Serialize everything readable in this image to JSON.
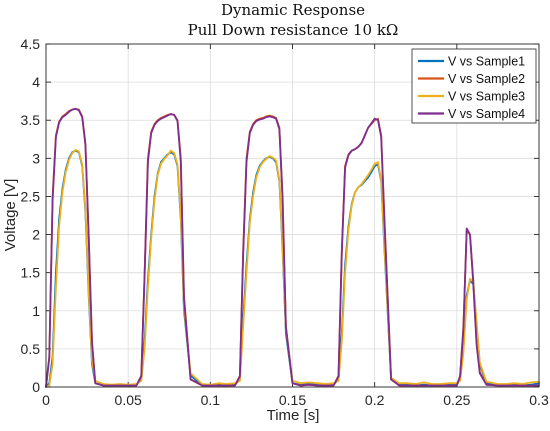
{
  "chart_data": {
    "type": "line",
    "title": "Dynamic Response",
    "subtitle": "Pull Down resistance 10 kΩ",
    "xlabel": "Time [s]",
    "ylabel": "Voltage [V]",
    "xlim": [
      0,
      0.3
    ],
    "ylim": [
      0,
      4.5
    ],
    "xticks": [
      0,
      0.05,
      0.1,
      0.15,
      0.2,
      0.25,
      0.3
    ],
    "xtick_labels": [
      "0",
      "0.05",
      "0.1",
      "0.15",
      "0.2",
      "0.25",
      "0.3"
    ],
    "yticks": [
      0,
      0.5,
      1,
      1.5,
      2,
      2.5,
      3,
      3.5,
      4,
      4.5
    ],
    "ytick_labels": [
      "0",
      "0.5",
      "1",
      "1.5",
      "2",
      "2.5",
      "3",
      "3.5",
      "4",
      "4.5"
    ],
    "grid": true,
    "legend_position": "top-right",
    "series": [
      {
        "name": "V vs Sample1",
        "color": "#0072BD",
        "x": [
          0.0,
          0.002,
          0.004,
          0.006,
          0.008,
          0.01,
          0.012,
          0.014,
          0.016,
          0.018,
          0.02,
          0.022,
          0.024,
          0.026,
          0.028,
          0.03,
          0.035,
          0.04,
          0.045,
          0.05,
          0.055,
          0.058,
          0.06,
          0.062,
          0.064,
          0.066,
          0.068,
          0.07,
          0.072,
          0.074,
          0.076,
          0.078,
          0.08,
          0.082,
          0.084,
          0.088,
          0.095,
          0.1,
          0.105,
          0.11,
          0.115,
          0.118,
          0.12,
          0.122,
          0.124,
          0.126,
          0.128,
          0.13,
          0.132,
          0.134,
          0.136,
          0.138,
          0.14,
          0.142,
          0.144,
          0.146,
          0.15,
          0.155,
          0.16,
          0.165,
          0.17,
          0.175,
          0.178,
          0.18,
          0.182,
          0.184,
          0.186,
          0.188,
          0.19,
          0.192,
          0.194,
          0.196,
          0.198,
          0.2,
          0.202,
          0.204,
          0.206,
          0.21,
          0.215,
          0.22,
          0.225,
          0.23,
          0.235,
          0.24,
          0.245,
          0.25,
          0.252,
          0.254,
          0.256,
          0.258,
          0.26,
          0.262,
          0.264,
          0.268,
          0.275,
          0.28,
          0.285,
          0.29,
          0.295,
          0.3
        ],
        "y": [
          0.0,
          0.05,
          0.4,
          1.5,
          2.2,
          2.6,
          2.85,
          3.0,
          3.08,
          3.1,
          3.08,
          2.9,
          2.3,
          1.2,
          0.3,
          0.05,
          0.02,
          0.02,
          0.03,
          0.02,
          0.03,
          0.1,
          0.6,
          1.4,
          2.0,
          2.5,
          2.8,
          2.95,
          3.0,
          3.05,
          3.08,
          3.05,
          2.9,
          2.2,
          1.0,
          0.15,
          0.02,
          0.02,
          0.03,
          0.02,
          0.03,
          0.1,
          0.9,
          1.6,
          2.2,
          2.55,
          2.78,
          2.9,
          2.96,
          3.0,
          3.02,
          3.0,
          2.95,
          2.7,
          1.8,
          0.7,
          0.05,
          0.03,
          0.05,
          0.03,
          0.02,
          0.03,
          0.1,
          0.7,
          1.6,
          2.1,
          2.4,
          2.55,
          2.62,
          2.65,
          2.7,
          2.75,
          2.82,
          2.9,
          2.92,
          2.7,
          1.8,
          0.1,
          0.03,
          0.03,
          0.02,
          0.03,
          0.02,
          0.02,
          0.03,
          0.03,
          0.1,
          0.5,
          1.2,
          1.4,
          1.35,
          0.8,
          0.3,
          0.05,
          0.02,
          0.02,
          0.03,
          0.02,
          0.03,
          0.05
        ]
      },
      {
        "name": "V vs Sample2",
        "color": "#D95319",
        "x": [
          0.0,
          0.002,
          0.004,
          0.006,
          0.008,
          0.01,
          0.012,
          0.014,
          0.016,
          0.018,
          0.02,
          0.022,
          0.024,
          0.026,
          0.028,
          0.03,
          0.035,
          0.04,
          0.045,
          0.05,
          0.055,
          0.058,
          0.06,
          0.062,
          0.064,
          0.066,
          0.068,
          0.07,
          0.072,
          0.074,
          0.076,
          0.078,
          0.08,
          0.082,
          0.084,
          0.088,
          0.095,
          0.1,
          0.105,
          0.11,
          0.115,
          0.118,
          0.12,
          0.122,
          0.124,
          0.126,
          0.128,
          0.13,
          0.132,
          0.134,
          0.136,
          0.138,
          0.14,
          0.142,
          0.144,
          0.146,
          0.15,
          0.155,
          0.16,
          0.165,
          0.17,
          0.175,
          0.178,
          0.18,
          0.182,
          0.184,
          0.186,
          0.188,
          0.19,
          0.192,
          0.194,
          0.196,
          0.198,
          0.2,
          0.202,
          0.204,
          0.206,
          0.21,
          0.215,
          0.22,
          0.225,
          0.23,
          0.235,
          0.24,
          0.245,
          0.25,
          0.252,
          0.254,
          0.256,
          0.258,
          0.26,
          0.262,
          0.264,
          0.268,
          0.275,
          0.28,
          0.285,
          0.29,
          0.295,
          0.3
        ],
        "y": [
          0.0,
          0.4,
          2.5,
          3.3,
          3.48,
          3.55,
          3.58,
          3.62,
          3.64,
          3.65,
          3.64,
          3.55,
          3.2,
          2.0,
          0.6,
          0.05,
          0.02,
          0.02,
          0.02,
          0.02,
          0.02,
          0.15,
          1.5,
          3.0,
          3.35,
          3.45,
          3.5,
          3.53,
          3.55,
          3.57,
          3.58,
          3.57,
          3.5,
          3.0,
          1.2,
          0.1,
          0.02,
          0.02,
          0.02,
          0.02,
          0.02,
          0.15,
          1.8,
          3.0,
          3.35,
          3.45,
          3.5,
          3.52,
          3.53,
          3.55,
          3.56,
          3.55,
          3.53,
          3.4,
          2.5,
          0.8,
          0.05,
          0.02,
          0.03,
          0.02,
          0.02,
          0.02,
          0.15,
          1.8,
          2.9,
          3.05,
          3.1,
          3.12,
          3.15,
          3.2,
          3.3,
          3.4,
          3.45,
          3.5,
          3.52,
          3.3,
          2.2,
          0.1,
          0.02,
          0.02,
          0.02,
          0.02,
          0.02,
          0.02,
          0.02,
          0.02,
          0.15,
          0.8,
          2.05,
          2.0,
          1.4,
          0.6,
          0.2,
          0.03,
          0.02,
          0.02,
          0.02,
          0.02,
          0.02,
          0.02
        ]
      },
      {
        "name": "V vs Sample3",
        "color": "#EDB120",
        "x": [
          0.0,
          0.002,
          0.004,
          0.006,
          0.008,
          0.01,
          0.012,
          0.014,
          0.016,
          0.018,
          0.02,
          0.022,
          0.024,
          0.026,
          0.028,
          0.03,
          0.035,
          0.04,
          0.045,
          0.05,
          0.055,
          0.058,
          0.06,
          0.062,
          0.064,
          0.066,
          0.068,
          0.07,
          0.072,
          0.074,
          0.076,
          0.078,
          0.08,
          0.082,
          0.084,
          0.088,
          0.095,
          0.1,
          0.105,
          0.11,
          0.115,
          0.118,
          0.12,
          0.122,
          0.124,
          0.126,
          0.128,
          0.13,
          0.132,
          0.134,
          0.136,
          0.138,
          0.14,
          0.142,
          0.144,
          0.146,
          0.15,
          0.155,
          0.16,
          0.165,
          0.17,
          0.175,
          0.178,
          0.18,
          0.182,
          0.184,
          0.186,
          0.188,
          0.19,
          0.192,
          0.194,
          0.196,
          0.198,
          0.2,
          0.202,
          0.204,
          0.206,
          0.21,
          0.215,
          0.22,
          0.225,
          0.23,
          0.235,
          0.24,
          0.245,
          0.25,
          0.252,
          0.254,
          0.256,
          0.258,
          0.26,
          0.262,
          0.264,
          0.268,
          0.275,
          0.28,
          0.285,
          0.29,
          0.295,
          0.3
        ],
        "y": [
          0.0,
          0.02,
          0.3,
          1.3,
          2.1,
          2.55,
          2.82,
          2.98,
          3.07,
          3.11,
          3.09,
          2.92,
          2.35,
          1.25,
          0.35,
          0.08,
          0.04,
          0.03,
          0.04,
          0.03,
          0.04,
          0.08,
          0.5,
          1.3,
          1.95,
          2.45,
          2.78,
          2.93,
          2.99,
          3.04,
          3.1,
          3.07,
          2.92,
          2.25,
          1.05,
          0.18,
          0.04,
          0.03,
          0.05,
          0.04,
          0.05,
          0.08,
          0.8,
          1.5,
          2.15,
          2.5,
          2.75,
          2.88,
          2.95,
          2.99,
          3.03,
          3.01,
          2.97,
          2.72,
          1.85,
          0.75,
          0.08,
          0.05,
          0.06,
          0.05,
          0.04,
          0.05,
          0.08,
          0.6,
          1.5,
          2.05,
          2.38,
          2.55,
          2.62,
          2.66,
          2.72,
          2.78,
          2.85,
          2.93,
          2.95,
          2.72,
          1.85,
          0.12,
          0.05,
          0.05,
          0.04,
          0.06,
          0.04,
          0.04,
          0.05,
          0.05,
          0.08,
          0.45,
          1.15,
          1.42,
          1.38,
          0.85,
          0.32,
          0.07,
          0.04,
          0.04,
          0.05,
          0.04,
          0.06,
          0.07
        ]
      },
      {
        "name": "V vs Sample4",
        "color": "#7E2F8E",
        "x": [
          0.0,
          0.002,
          0.004,
          0.006,
          0.008,
          0.01,
          0.012,
          0.014,
          0.016,
          0.018,
          0.02,
          0.022,
          0.024,
          0.026,
          0.028,
          0.03,
          0.035,
          0.04,
          0.045,
          0.05,
          0.055,
          0.058,
          0.06,
          0.062,
          0.064,
          0.066,
          0.068,
          0.07,
          0.072,
          0.074,
          0.076,
          0.078,
          0.08,
          0.082,
          0.084,
          0.088,
          0.095,
          0.1,
          0.105,
          0.11,
          0.115,
          0.118,
          0.12,
          0.122,
          0.124,
          0.126,
          0.128,
          0.13,
          0.132,
          0.134,
          0.136,
          0.138,
          0.14,
          0.142,
          0.144,
          0.146,
          0.15,
          0.155,
          0.16,
          0.165,
          0.17,
          0.175,
          0.178,
          0.18,
          0.182,
          0.184,
          0.186,
          0.188,
          0.19,
          0.192,
          0.194,
          0.196,
          0.198,
          0.2,
          0.202,
          0.204,
          0.206,
          0.21,
          0.215,
          0.22,
          0.225,
          0.23,
          0.235,
          0.24,
          0.245,
          0.25,
          0.252,
          0.254,
          0.256,
          0.258,
          0.26,
          0.262,
          0.264,
          0.268,
          0.275,
          0.28,
          0.285,
          0.29,
          0.295,
          0.3
        ],
        "y": [
          0.0,
          0.38,
          2.45,
          3.28,
          3.47,
          3.54,
          3.57,
          3.61,
          3.64,
          3.65,
          3.63,
          3.54,
          3.18,
          1.95,
          0.58,
          0.05,
          0.02,
          0.02,
          0.02,
          0.02,
          0.02,
          0.14,
          1.45,
          2.95,
          3.33,
          3.44,
          3.49,
          3.52,
          3.54,
          3.56,
          3.58,
          3.57,
          3.49,
          2.95,
          1.15,
          0.1,
          0.02,
          0.02,
          0.02,
          0.02,
          0.02,
          0.14,
          1.75,
          2.95,
          3.33,
          3.44,
          3.49,
          3.51,
          3.52,
          3.54,
          3.55,
          3.54,
          3.52,
          3.38,
          2.45,
          0.78,
          0.05,
          0.02,
          0.03,
          0.02,
          0.02,
          0.02,
          0.14,
          1.75,
          2.88,
          3.04,
          3.1,
          3.12,
          3.15,
          3.2,
          3.3,
          3.4,
          3.46,
          3.52,
          3.5,
          3.28,
          2.15,
          0.1,
          0.02,
          0.02,
          0.02,
          0.02,
          0.02,
          0.02,
          0.02,
          0.02,
          0.14,
          0.75,
          2.08,
          2.0,
          1.35,
          0.55,
          0.18,
          0.03,
          0.02,
          0.02,
          0.02,
          0.02,
          0.02,
          0.02
        ]
      }
    ]
  }
}
